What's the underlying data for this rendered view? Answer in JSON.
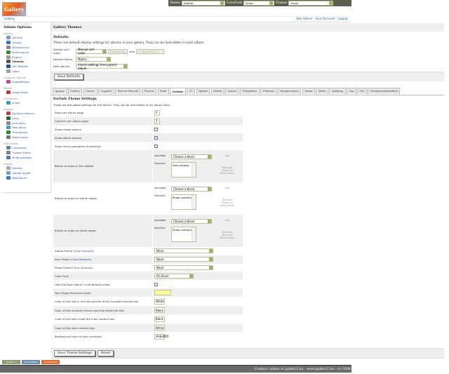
{
  "topbar": {
    "theme_label": "Theme",
    "theme_value": "Matrix",
    "colorpack_label": "ColorPack",
    "colorpack_value": "None",
    "frames_label": "Frames",
    "frames_value": "None"
  },
  "logo_text": "Gallery",
  "breadcrumb": {
    "home": "Gallery",
    "links": [
      "Site Admin",
      "Your Account",
      "Logout"
    ]
  },
  "sidebar": {
    "title": "Admin Options",
    "groups": [
      {
        "name": "Gallery",
        "items": [
          "General",
          "Groups",
          "Maintenance",
          "Performance",
          "Plugins",
          "Themes",
          "URL Rewrite",
          "Users"
        ]
      },
      {
        "name": "Graphics Toolkits",
        "items": [
          "ImageMagick"
        ]
      },
      {
        "name": "Blocks",
        "items": [
          "Image Block"
        ]
      },
      {
        "name": "Commerce",
        "items": [
          "eCard"
        ]
      },
      {
        "name": "Display",
        "items": [
          "Dynamic Albums",
          "Icons",
          "Link Items",
          "New Items",
          "Thumbnails",
          "Watermarks"
        ]
      },
      {
        "name": "Extra Data",
        "items": [
          "Comments",
          "Custom Fields",
          "MultiLanguage"
        ]
      },
      {
        "name": "Import",
        "items": [
          "Remote",
          "Upload Applet",
          "Web/Server"
        ]
      }
    ],
    "current": "Themes"
  },
  "main": {
    "title": "Gallery Themes",
    "defaults_heading": "Defaults",
    "defaults_desc": "These are default display settings for albums in your gallery. They can be overridden in each album.",
    "sort_label": "Default sort order",
    "sort_value": "Manual sort order",
    "sort_dir": "Ascending",
    "with_label": "with",
    "presort": "< no presort >",
    "theme_label": "Default theme",
    "theme_value": "Matrix",
    "new_albums_label": "New albums",
    "new_albums_value": "Inherit settings from parent album",
    "save_defaults": "Save Defaults",
    "tabs": [
      "Ajaxian",
      "Carbon",
      "Classic",
      "Cuppleft",
      "EclecticThreads",
      "Floatrix",
      "Fluid",
      "ForSale",
      "G1",
      "Hybrid",
      "Matrix",
      "Nature",
      "PGlightbox",
      "PGtheme",
      "RoundCorners",
      "Siriux",
      "Slider",
      "Splitlang",
      "Tan",
      "Tile",
      "WordpressEmbedded"
    ],
    "active_tab": "ForSale",
    "settings_heading": "ForSale Theme Settings",
    "settings_desc": "These are the global settings for the theme. They can be overridden at the album level.",
    "rows": [
      {
        "label": "Rows per album page",
        "type": "text",
        "value": "3"
      },
      {
        "label": "Columns per album page",
        "type": "text",
        "value": "3"
      },
      {
        "label": "Show image owners",
        "type": "check",
        "value": false
      },
      {
        "label": "Show album owners",
        "type": "check",
        "value": true
      },
      {
        "label": "Show micro navigation thumbnails",
        "type": "check",
        "value": true
      },
      {
        "label": "Blocks to show in the sidebar",
        "type": "blocks",
        "value": "Item actions"
      },
      {
        "label": "Blocks to show on album pages",
        "type": "blocks",
        "value": "Show comments"
      },
      {
        "label": "Blocks to show on photo pages",
        "type": "blocks",
        "value": "Show comments"
      },
      {
        "label": "Album Frame",
        "link": "View Samples",
        "type": "select",
        "value": "None"
      },
      {
        "label": "Item Frame",
        "link": "View Samples",
        "type": "select",
        "value": "None"
      },
      {
        "label": "Photo Frame",
        "link": "View Samples",
        "type": "select",
        "value": "None"
      },
      {
        "label": "Color Pack",
        "type": "select2",
        "value": "PG Silver"
      },
      {
        "label": "Hide the Root Album in the BreadCrumbs",
        "type": "check",
        "value": false
      },
      {
        "label": "Your Paypal Business email",
        "type": "email",
        "value": ""
      },
      {
        "label": "Color of the text in the title portion of the rounded corners box",
        "type": "text",
        "value": "White"
      },
      {
        "label": "Color of the rounded corners box that holds the title",
        "type": "text",
        "value": "Black"
      },
      {
        "label": "Color of the text inside the main content box",
        "type": "text",
        "value": "Black"
      },
      {
        "label": "Color of the main content box",
        "type": "text",
        "value": "White"
      },
      {
        "label": "Background color of your colorpack",
        "type": "text",
        "value": "#ebd095"
      }
    ],
    "blocks": {
      "available_label": "Available",
      "selected_label": "Selected",
      "choose": "Choose a block",
      "add": "Add",
      "remove": "Remove",
      "move_up": "Move Up",
      "move_down": "Move Down"
    },
    "save_settings": "Save Theme Settings",
    "reset": "Reset"
  },
  "badges": [
    "GALLERY 2.2",
    "PHP POWERED",
    "RSS VALIDATED"
  ],
  "footer": "Contact: admin at gallery2.hu - www.gallery2.hu - (c) 2006"
}
